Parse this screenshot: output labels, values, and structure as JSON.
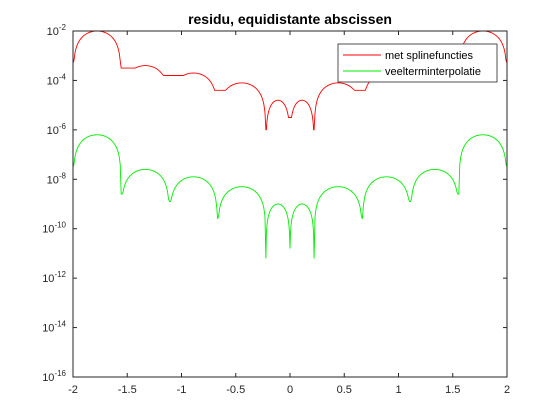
{
  "chart_data": {
    "type": "line",
    "title": "residu, equidistante abscissen",
    "xlabel": "",
    "ylabel": "",
    "xlim": [
      -2,
      2
    ],
    "ylim_log10": [
      -16,
      -2
    ],
    "yscale": "log",
    "grid": false,
    "legend_position": "top-right",
    "x_ticks": [
      "-2",
      "-1.5",
      "-1",
      "-0.5",
      "0",
      "0.5",
      "1",
      "1.5",
      "2"
    ],
    "x_tick_values": [
      -2,
      -1.5,
      -1,
      -0.5,
      0,
      0.5,
      1,
      1.5,
      2
    ],
    "y_tick_exponents": [
      -16,
      -14,
      -12,
      -10,
      -8,
      -6,
      -4,
      -2
    ],
    "y_tick_base": "10",
    "y_tick_labels": [
      "-16",
      "-14",
      "-12",
      "-10",
      "-8",
      "-6",
      "-4",
      "-2"
    ],
    "series": [
      {
        "name": "met splinefuncties",
        "color": "#ff0000",
        "zeros": [
          -2.0,
          -1.556,
          -1.111,
          -0.667,
          -0.222,
          0.0,
          0.222,
          0.667,
          1.111,
          1.556,
          2.0
        ],
        "arch_peak_log10": [
          -2.0,
          -3.4,
          -3.7,
          -4.1,
          -4.8,
          -4.8,
          -4.1,
          -3.7,
          -3.4,
          -2.0
        ],
        "dip_log10": [
          -3.5,
          -3.8,
          -4.4,
          -6.0,
          -5.5,
          -6.0,
          -4.4,
          -3.8,
          -3.5
        ]
      },
      {
        "name": "veelterminterpolatie",
        "color": "#00ee00",
        "zeros": [
          -2.0,
          -1.556,
          -1.111,
          -0.667,
          -0.222,
          0.0,
          0.222,
          0.667,
          1.111,
          1.556,
          2.0
        ],
        "arch_peak_log10": [
          -6.2,
          -7.6,
          -7.9,
          -8.3,
          -9.0,
          -9.0,
          -8.3,
          -7.9,
          -7.6,
          -6.2
        ],
        "dip_log10": [
          -8.6,
          -8.9,
          -9.6,
          -11.2,
          -10.8,
          -11.2,
          -9.6,
          -8.9,
          -8.6
        ]
      }
    ]
  }
}
